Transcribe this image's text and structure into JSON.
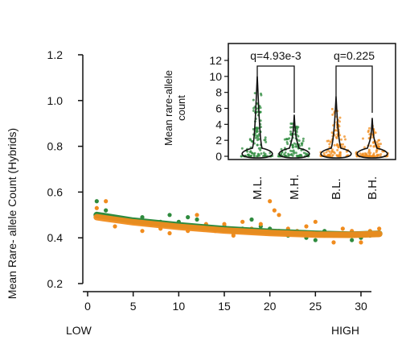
{
  "chart_data": [
    {
      "type": "scatter",
      "title": "",
      "xlabel": "",
      "ylabel": "Mean Rare- allele Count (Hybrids)",
      "xlim": [
        0,
        32
      ],
      "ylim": [
        0.2,
        1.2
      ],
      "x_ticks": [
        0,
        5,
        10,
        15,
        20,
        25,
        30
      ],
      "y_ticks": [
        0.2,
        0.4,
        0.6,
        0.8,
        1.0,
        1.2
      ],
      "y_tick_labels": [
        "0.2",
        "0.4",
        "0.6",
        "0.8",
        "1.0",
        "1.2"
      ],
      "x_annotations": {
        "low": "LOW",
        "high": "HIGH"
      },
      "colors": {
        "green": "#2e8b3e",
        "orange": "#f08c1e"
      },
      "series": [
        {
          "color": "#2e8b3e",
          "points": [
            [
              1,
              0.56
            ],
            [
              2,
              0.52
            ],
            [
              3,
              0.49
            ],
            [
              5,
              0.47
            ],
            [
              6,
              0.49
            ],
            [
              7,
              0.46
            ],
            [
              8,
              0.47
            ],
            [
              9,
              0.5
            ],
            [
              10,
              0.47
            ],
            [
              11,
              0.49
            ],
            [
              12,
              0.48
            ],
            [
              13,
              0.45
            ],
            [
              14,
              0.44
            ],
            [
              15,
              0.45
            ],
            [
              16,
              0.42
            ],
            [
              17,
              0.44
            ],
            [
              18,
              0.48
            ],
            [
              19,
              0.45
            ],
            [
              20,
              0.44
            ],
            [
              21,
              0.43
            ],
            [
              22,
              0.41
            ],
            [
              23,
              0.42
            ],
            [
              24,
              0.4
            ],
            [
              25,
              0.39
            ],
            [
              26,
              0.43
            ],
            [
              27,
              0.41
            ],
            [
              28,
              0.42
            ],
            [
              29,
              0.39
            ],
            [
              30,
              0.4
            ],
            [
              31,
              0.41
            ],
            [
              32,
              0.42
            ]
          ],
          "trend": [
            [
              1,
              0.5
            ],
            [
              5,
              0.475
            ],
            [
              10,
              0.455
            ],
            [
              15,
              0.438
            ],
            [
              20,
              0.426
            ],
            [
              25,
              0.418
            ],
            [
              29,
              0.414
            ],
            [
              32,
              0.418
            ]
          ]
        },
        {
          "color": "#f08c1e",
          "points": [
            [
              1,
              0.53
            ],
            [
              2,
              0.56
            ],
            [
              3,
              0.45
            ],
            [
              4,
              0.48
            ],
            [
              6,
              0.43
            ],
            [
              8,
              0.44
            ],
            [
              9,
              0.42
            ],
            [
              11,
              0.43
            ],
            [
              12,
              0.5
            ],
            [
              13,
              0.46
            ],
            [
              14,
              0.43
            ],
            [
              15,
              0.46
            ],
            [
              16,
              0.41
            ],
            [
              17,
              0.47
            ],
            [
              18,
              0.44
            ],
            [
              19,
              0.46
            ],
            [
              20,
              0.56
            ],
            [
              20.5,
              0.52
            ],
            [
              21,
              0.5
            ],
            [
              22,
              0.44
            ],
            [
              23,
              0.43
            ],
            [
              24,
              0.45
            ],
            [
              25,
              0.47
            ],
            [
              26,
              0.41
            ],
            [
              27,
              0.38
            ],
            [
              28,
              0.44
            ],
            [
              29,
              0.43
            ],
            [
              30,
              0.38
            ],
            [
              31,
              0.43
            ],
            [
              32,
              0.44
            ]
          ],
          "trend": [
            [
              1,
              0.49
            ],
            [
              5,
              0.468
            ],
            [
              10,
              0.448
            ],
            [
              15,
              0.432
            ],
            [
              20,
              0.421
            ],
            [
              25,
              0.414
            ],
            [
              29,
              0.413
            ],
            [
              32,
              0.417
            ]
          ]
        }
      ]
    },
    {
      "type": "violin",
      "title": "",
      "ylabel": "Mean rare-allele count",
      "ylim": [
        0,
        13
      ],
      "y_ticks": [
        0,
        2,
        4,
        6,
        8,
        10,
        12
      ],
      "y_tick_labels": [
        "0",
        "2",
        "4",
        "6",
        "8",
        "10",
        "12"
      ],
      "categories": [
        "M.L.",
        "M.H.",
        "B.L.",
        "B.H."
      ],
      "category_colors": [
        "#2e8b3e",
        "#2e8b3e",
        "#f08c1e",
        "#f08c1e"
      ],
      "max_values": [
        10.0,
        5.2,
        7.5,
        4.8
      ],
      "comparisons": [
        {
          "groups": [
            "M.L.",
            "M.H."
          ],
          "label": "q=4.93e-3"
        },
        {
          "groups": [
            "B.L.",
            "B.H."
          ],
          "label": "q=0.225"
        }
      ]
    }
  ]
}
